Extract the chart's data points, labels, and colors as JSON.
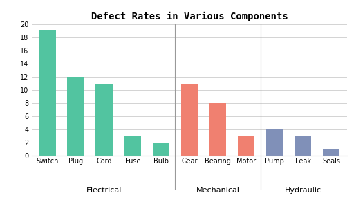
{
  "title": "Defect Rates in Various Components",
  "bars": [
    {
      "label": "Switch",
      "value": 19,
      "group": "Electrical",
      "color": "#52C4A0"
    },
    {
      "label": "Plug",
      "value": 12,
      "group": "Electrical",
      "color": "#52C4A0"
    },
    {
      "label": "Cord",
      "value": 11,
      "group": "Electrical",
      "color": "#52C4A0"
    },
    {
      "label": "Fuse",
      "value": 3,
      "group": "Electrical",
      "color": "#52C4A0"
    },
    {
      "label": "Bulb",
      "value": 2,
      "group": "Electrical",
      "color": "#52C4A0"
    },
    {
      "label": "Gear",
      "value": 11,
      "group": "Mechanical",
      "color": "#F08070"
    },
    {
      "label": "Bearing",
      "value": 8,
      "group": "Mechanical",
      "color": "#F08070"
    },
    {
      "label": "Motor",
      "value": 3,
      "group": "Mechanical",
      "color": "#F08070"
    },
    {
      "label": "Pump",
      "value": 4,
      "group": "Hydraulic",
      "color": "#8090B8"
    },
    {
      "label": "Leak",
      "value": 3,
      "group": "Hydraulic",
      "color": "#8090B8"
    },
    {
      "label": "Seals",
      "value": 1,
      "group": "Hydraulic",
      "color": "#8090B8"
    }
  ],
  "groups": [
    {
      "name": "Electrical",
      "indices": [
        0,
        1,
        2,
        3,
        4
      ]
    },
    {
      "name": "Mechanical",
      "indices": [
        5,
        6,
        7
      ]
    },
    {
      "name": "Hydraulic",
      "indices": [
        8,
        9,
        10
      ]
    }
  ],
  "ylim": [
    0,
    20
  ],
  "yticks": [
    0,
    2,
    4,
    6,
    8,
    10,
    12,
    14,
    16,
    18,
    20
  ],
  "background_color": "#FFFFFF",
  "grid_color": "#CCCCCC",
  "title_fontsize": 10,
  "bar_width": 0.6,
  "separator_color": "#999999"
}
